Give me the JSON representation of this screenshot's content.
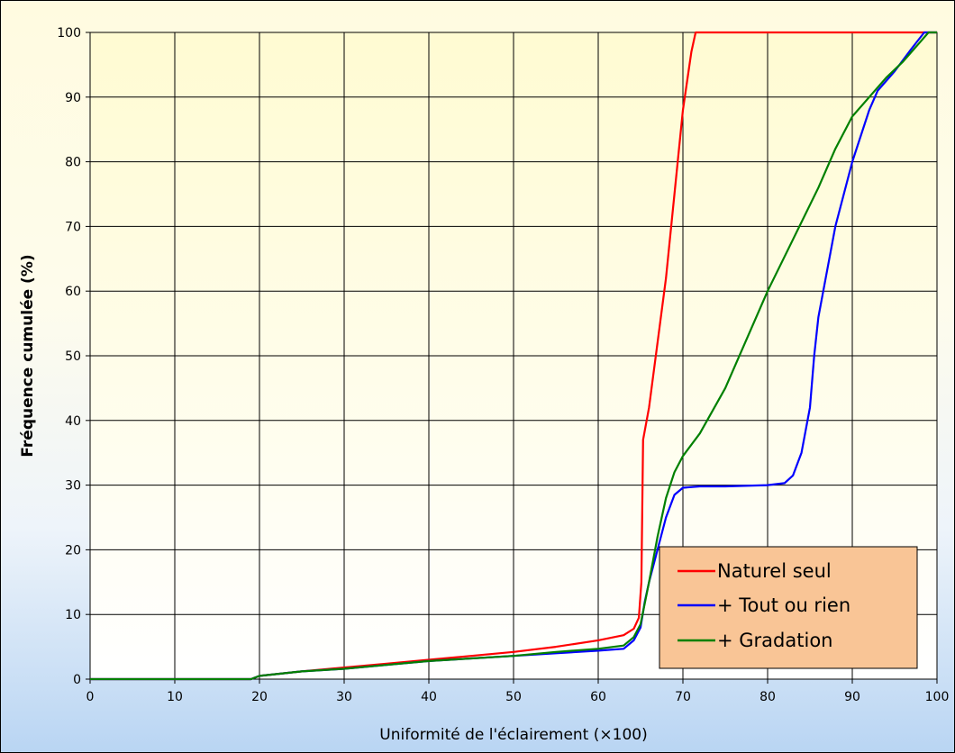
{
  "chart_data": {
    "type": "line",
    "title": "",
    "xlabel": "Uniformité de l'éclairement (×100)",
    "ylabel": "Fréquence cumulée (%)",
    "xlim": [
      0,
      100
    ],
    "ylim": [
      0,
      100
    ],
    "xticks": [
      0,
      10,
      20,
      30,
      40,
      50,
      60,
      70,
      80,
      90,
      100
    ],
    "yticks": [
      0,
      10,
      20,
      30,
      40,
      50,
      60,
      70,
      80,
      90,
      100
    ],
    "grid": true,
    "legend_position": "bottom-right",
    "colors": {
      "plot_background_top": "#fffbd2",
      "plot_background_bottom": "#ffffff",
      "frame_background_bottom": "#b9d5f3",
      "legend_background": "#f9c596"
    },
    "series": [
      {
        "name": "Naturel seul",
        "color": "#ff0000",
        "points": [
          [
            0,
            0
          ],
          [
            19,
            0
          ],
          [
            20,
            0.5
          ],
          [
            25,
            1.2
          ],
          [
            30,
            1.8
          ],
          [
            35,
            2.4
          ],
          [
            40,
            3.0
          ],
          [
            45,
            3.6
          ],
          [
            50,
            4.2
          ],
          [
            55,
            5.0
          ],
          [
            60,
            6.0
          ],
          [
            63,
            6.8
          ],
          [
            64.2,
            7.8
          ],
          [
            64.8,
            9.5
          ],
          [
            65.1,
            15
          ],
          [
            65.3,
            37
          ],
          [
            66,
            42
          ],
          [
            67,
            52
          ],
          [
            68,
            62
          ],
          [
            69,
            75
          ],
          [
            70,
            88
          ],
          [
            71,
            97
          ],
          [
            71.5,
            100
          ],
          [
            72,
            100
          ],
          [
            100,
            100
          ]
        ]
      },
      {
        "name": "+ Tout ou rien",
        "color": "#0000ff",
        "points": [
          [
            0,
            0
          ],
          [
            19,
            0
          ],
          [
            20,
            0.5
          ],
          [
            25,
            1.2
          ],
          [
            30,
            1.6
          ],
          [
            35,
            2.2
          ],
          [
            40,
            2.8
          ],
          [
            45,
            3.2
          ],
          [
            50,
            3.6
          ],
          [
            55,
            4.0
          ],
          [
            60,
            4.4
          ],
          [
            63,
            4.7
          ],
          [
            64.2,
            6.0
          ],
          [
            65,
            8.0
          ],
          [
            65.5,
            12
          ],
          [
            66,
            15
          ],
          [
            67,
            20
          ],
          [
            68,
            25
          ],
          [
            69,
            28.5
          ],
          [
            70,
            29.6
          ],
          [
            72,
            29.8
          ],
          [
            75,
            29.8
          ],
          [
            80,
            30
          ],
          [
            82,
            30.3
          ],
          [
            83,
            31.5
          ],
          [
            84,
            35
          ],
          [
            85,
            42
          ],
          [
            85.5,
            50
          ],
          [
            86,
            56
          ],
          [
            87,
            63
          ],
          [
            88,
            70
          ],
          [
            89,
            75
          ],
          [
            90,
            80
          ],
          [
            91,
            84
          ],
          [
            92,
            88
          ],
          [
            93,
            91
          ],
          [
            95,
            94
          ],
          [
            97,
            97.5
          ],
          [
            98.5,
            100
          ],
          [
            100,
            100
          ]
        ]
      },
      {
        "name": "+ Gradation",
        "color": "#008000",
        "points": [
          [
            0,
            0
          ],
          [
            19,
            0
          ],
          [
            20,
            0.5
          ],
          [
            25,
            1.2
          ],
          [
            30,
            1.6
          ],
          [
            35,
            2.2
          ],
          [
            40,
            2.8
          ],
          [
            45,
            3.2
          ],
          [
            50,
            3.6
          ],
          [
            55,
            4.2
          ],
          [
            60,
            4.7
          ],
          [
            63,
            5.2
          ],
          [
            64.2,
            6.5
          ],
          [
            65,
            8.5
          ],
          [
            66,
            15
          ],
          [
            67,
            22
          ],
          [
            68,
            28
          ],
          [
            69,
            32
          ],
          [
            70,
            34.5
          ],
          [
            72,
            38
          ],
          [
            75,
            45
          ],
          [
            78,
            54
          ],
          [
            80,
            60
          ],
          [
            83,
            68
          ],
          [
            86,
            76
          ],
          [
            88,
            82
          ],
          [
            90,
            87
          ],
          [
            92,
            90
          ],
          [
            94,
            93
          ],
          [
            96,
            95.5
          ],
          [
            98,
            98.5
          ],
          [
            99,
            100
          ],
          [
            100,
            100
          ]
        ]
      }
    ]
  }
}
